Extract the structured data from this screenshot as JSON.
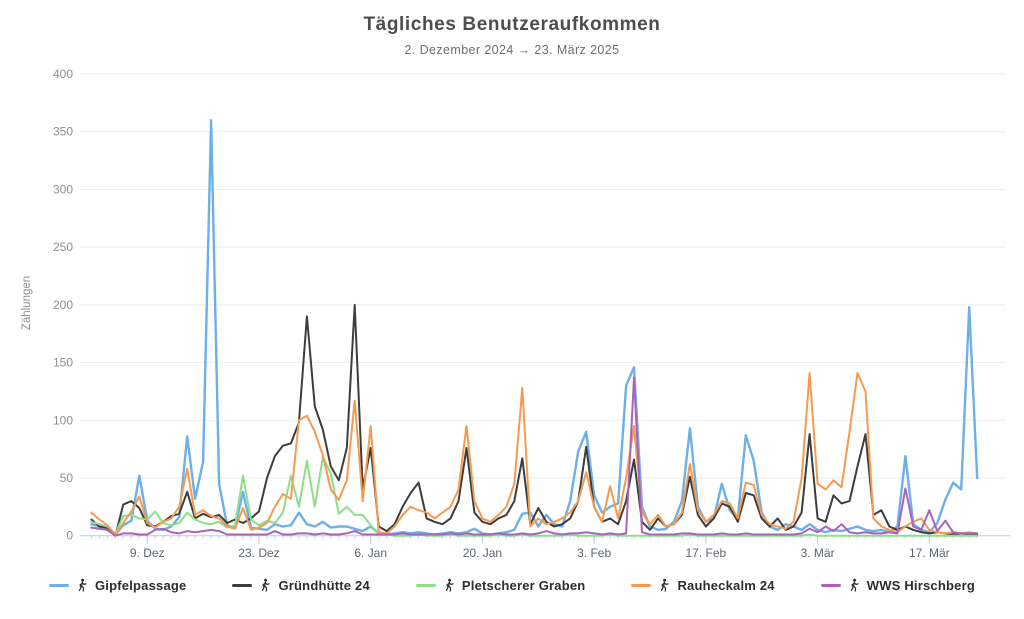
{
  "title": "Tägliches Benutzeraufkommen",
  "subtitle": "2. Dezember 2024 → 23. März 2025",
  "chart_data": {
    "type": "line",
    "title": "Tägliches Benutzeraufkommen",
    "subtitle": "2. Dezember 2024 → 23. März 2025",
    "ylabel": "Zählungen",
    "ylim": [
      0,
      400
    ],
    "ytick_step": 50,
    "yticks": [
      0,
      50,
      100,
      150,
      200,
      250,
      300,
      350,
      400
    ],
    "grid": true,
    "legend_position": "bottom",
    "num_points": 112,
    "x_range_label": "2. Dezember 2024 bis 23. März 2025 (täglich)",
    "x_ticks": [
      {
        "index": 7,
        "label": "9. Dez"
      },
      {
        "index": 21,
        "label": "23. Dez"
      },
      {
        "index": 35,
        "label": "6. Jan"
      },
      {
        "index": 49,
        "label": "20. Jan"
      },
      {
        "index": 63,
        "label": "3. Feb"
      },
      {
        "index": 77,
        "label": "17. Feb"
      },
      {
        "index": 91,
        "label": "3. Mär"
      },
      {
        "index": 105,
        "label": "17. Mär"
      }
    ],
    "series": [
      {
        "name": "Gipfelpassage",
        "color": "#6FAFE8",
        "values": [
          10,
          8,
          5,
          1,
          9,
          13,
          52,
          13,
          6,
          5,
          8,
          16,
          86,
          32,
          64,
          360,
          45,
          9,
          7,
          38,
          7,
          6,
          5,
          10,
          8,
          9,
          20,
          10,
          8,
          12,
          7,
          8,
          8,
          6,
          4,
          8,
          2,
          1,
          2,
          3,
          2,
          3,
          2,
          1,
          2,
          3,
          2,
          3,
          6,
          2,
          1,
          2,
          3,
          5,
          19,
          20,
          8,
          18,
          10,
          8,
          30,
          73,
          90,
          35,
          20,
          25,
          28,
          130,
          146,
          25,
          8,
          5,
          6,
          12,
          30,
          93,
          25,
          12,
          15,
          45,
          22,
          15,
          87,
          65,
          20,
          8,
          5,
          10,
          8,
          5,
          10,
          5,
          3,
          5,
          4,
          6,
          8,
          5,
          4,
          5,
          3,
          8,
          69,
          10,
          5,
          3,
          11,
          31,
          46,
          40,
          198,
          50
        ]
      },
      {
        "name": "Gründhütte 24",
        "color": "#3D3D3D",
        "values": [
          14,
          8,
          7,
          0,
          27,
          30,
          24,
          9,
          8,
          12,
          17,
          19,
          38,
          15,
          19,
          16,
          18,
          11,
          14,
          11,
          15,
          21,
          50,
          69,
          78,
          80,
          98,
          190,
          112,
          92,
          60,
          48,
          76,
          200,
          41,
          76,
          8,
          4,
          10,
          25,
          37,
          46,
          15,
          12,
          10,
          15,
          30,
          76,
          20,
          12,
          10,
          15,
          18,
          30,
          67,
          10,
          24,
          12,
          8,
          10,
          15,
          30,
          77,
          25,
          12,
          15,
          10,
          30,
          66,
          12,
          5,
          15,
          8,
          10,
          18,
          51,
          18,
          8,
          15,
          28,
          25,
          12,
          37,
          35,
          15,
          8,
          15,
          5,
          8,
          20,
          88,
          15,
          12,
          35,
          28,
          30,
          60,
          88,
          18,
          22,
          8,
          5,
          8,
          5,
          3,
          2,
          3,
          2,
          1,
          2,
          1,
          1
        ]
      },
      {
        "name": "Pletscherer Graben",
        "color": "#8DDE8A",
        "values": [
          12,
          10,
          8,
          2,
          17,
          18,
          15,
          14,
          21,
          11,
          9,
          11,
          20,
          14,
          11,
          10,
          12,
          7,
          9,
          52,
          14,
          9,
          13,
          11,
          20,
          52,
          25,
          65,
          25,
          68,
          54,
          19,
          25,
          18,
          18,
          9,
          2,
          1,
          0,
          0,
          0,
          1,
          0,
          0,
          0,
          1,
          0,
          0,
          0,
          0,
          0,
          1,
          0,
          0,
          1,
          0,
          0,
          0,
          0,
          0,
          1,
          0,
          0,
          0,
          0,
          1,
          0,
          0,
          0,
          0,
          0,
          0,
          0,
          0,
          0,
          1,
          0,
          0,
          0,
          0,
          0,
          0,
          0,
          0,
          0,
          0,
          0,
          0,
          0,
          0,
          1,
          0,
          0,
          0,
          0,
          0,
          0,
          0,
          0,
          0,
          0,
          0,
          0,
          0,
          0,
          0,
          0,
          0,
          0,
          0,
          0,
          0
        ]
      },
      {
        "name": "Rauheckalm 24",
        "color": "#F59B51",
        "values": [
          20,
          14,
          9,
          1,
          11,
          21,
          34,
          11,
          7,
          12,
          15,
          25,
          58,
          18,
          22,
          17,
          15,
          8,
          6,
          24,
          5,
          7,
          11,
          25,
          36,
          32,
          100,
          104,
          90,
          70,
          40,
          31,
          48,
          117,
          30,
          95,
          3,
          2,
          8,
          18,
          25,
          22,
          20,
          15,
          20,
          25,
          40,
          95,
          30,
          15,
          12,
          18,
          25,
          45,
          128,
          8,
          15,
          10,
          12,
          15,
          20,
          30,
          55,
          25,
          12,
          43,
          15,
          50,
          95,
          20,
          10,
          18,
          8,
          10,
          20,
          62,
          22,
          12,
          18,
          30,
          28,
          15,
          46,
          44,
          18,
          10,
          8,
          6,
          12,
          50,
          141,
          45,
          40,
          48,
          42,
          90,
          141,
          125,
          15,
          8,
          5,
          3,
          8,
          12,
          15,
          5,
          3,
          2,
          3,
          2,
          3,
          2
        ]
      },
      {
        "name": "WWS Hirschberg",
        "color": "#A963B9",
        "values": [
          7,
          6,
          5,
          0,
          2,
          2,
          1,
          1,
          5,
          6,
          3,
          2,
          4,
          3,
          4,
          5,
          4,
          1,
          1,
          1,
          1,
          1,
          1,
          4,
          1,
          1,
          2,
          2,
          1,
          2,
          1,
          1,
          2,
          4,
          1,
          1,
          1,
          1,
          1,
          2,
          1,
          1,
          1,
          1,
          1,
          2,
          1,
          2,
          1,
          1,
          1,
          2,
          1,
          1,
          2,
          1,
          2,
          4,
          2,
          1,
          2,
          2,
          3,
          2,
          1,
          2,
          1,
          2,
          137,
          3,
          1,
          1,
          1,
          1,
          2,
          2,
          1,
          1,
          1,
          2,
          1,
          1,
          2,
          1,
          1,
          1,
          1,
          1,
          1,
          2,
          6,
          3,
          8,
          4,
          10,
          3,
          2,
          3,
          2,
          2,
          3,
          2,
          41,
          8,
          5,
          22,
          4,
          13,
          3,
          2,
          2,
          2
        ]
      }
    ],
    "colors": {
      "gridline": "#EDEDED",
      "axis_line": "#B9C9E8",
      "minor_tick": "#C6D4EC",
      "y_tick_label": "#8F8F8F",
      "x_tick_label": "#5C6570",
      "axis_title": "#8F8F8F",
      "title_text": "#4D4D4D",
      "subtitle_text": "#6E6E6E",
      "legend_text": "#2D2D2D",
      "hiker_icon": "#2E2E2E"
    }
  }
}
